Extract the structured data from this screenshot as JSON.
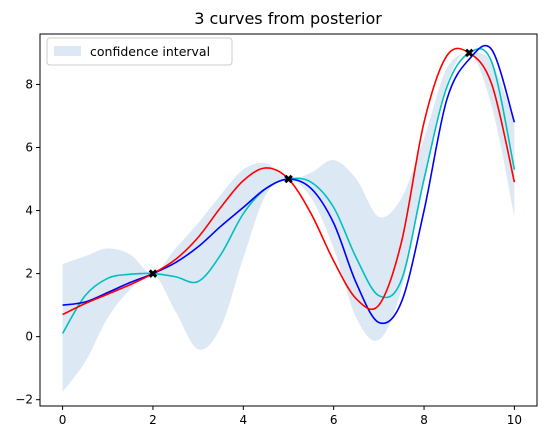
{
  "chart_data": {
    "type": "line",
    "title": "3 curves from posterior",
    "xlabel": "",
    "ylabel": "",
    "xlim": [
      -0.5,
      10.5
    ],
    "ylim": [
      -2.2,
      9.6
    ],
    "xticks": [
      0,
      2,
      4,
      6,
      8,
      10
    ],
    "yticks": [
      -2,
      0,
      2,
      4,
      6,
      8
    ],
    "grid": false,
    "legend": {
      "placement": "top-left",
      "entries": [
        "confidence interval"
      ]
    },
    "confidence_interval": {
      "name": "confidence interval",
      "color": "#dce8f4",
      "x": [
        0,
        0.5,
        1,
        1.5,
        2,
        2.5,
        3,
        3.5,
        4,
        4.5,
        5,
        5.5,
        6,
        6.5,
        7,
        7.5,
        8,
        8.5,
        9,
        9.5,
        10
      ],
      "upper": [
        2.3,
        2.55,
        2.8,
        2.6,
        2.0,
        2.8,
        3.6,
        4.5,
        5.3,
        5.5,
        5.0,
        5.2,
        5.6,
        5.0,
        3.8,
        4.4,
        6.3,
        8.5,
        9.0,
        8.7,
        6.8
      ],
      "lower": [
        -1.75,
        -0.8,
        0.6,
        1.5,
        2.0,
        0.8,
        -0.4,
        0.3,
        2.5,
        4.5,
        5.0,
        4.4,
        2.8,
        0.6,
        -0.1,
        1.5,
        5.0,
        8.0,
        9.0,
        7.3,
        3.8
      ]
    },
    "series": [
      {
        "color": "#00bfbf",
        "x": [
          0,
          0.5,
          1,
          1.5,
          2,
          2.5,
          3,
          3.5,
          4,
          4.5,
          5,
          5.5,
          6,
          6.5,
          7,
          7.5,
          8,
          8.5,
          9,
          9.5,
          10
        ],
        "y": [
          0.1,
          1.3,
          1.85,
          1.98,
          2.0,
          1.9,
          1.75,
          2.6,
          3.9,
          4.7,
          5.0,
          4.9,
          4.1,
          2.5,
          1.3,
          1.8,
          5.0,
          7.9,
          9.0,
          8.7,
          5.3
        ]
      },
      {
        "color": "#0000ff",
        "x": [
          0,
          0.5,
          1,
          1.5,
          2,
          2.5,
          3,
          3.5,
          4,
          4.5,
          5,
          5.5,
          6,
          6.5,
          7,
          7.5,
          8,
          8.5,
          9,
          9.5,
          10
        ],
        "y": [
          1.0,
          1.1,
          1.4,
          1.72,
          2.0,
          2.35,
          2.85,
          3.5,
          4.1,
          4.7,
          5.0,
          4.7,
          3.6,
          1.7,
          0.45,
          1.1,
          4.0,
          7.5,
          8.8,
          9.1,
          6.8
        ]
      },
      {
        "color": "#ff0000",
        "x": [
          0,
          0.5,
          1,
          1.5,
          2,
          2.5,
          3,
          3.5,
          4,
          4.5,
          5,
          5.5,
          6,
          6.5,
          7,
          7.5,
          8,
          8.5,
          9,
          9.5,
          10
        ],
        "y": [
          0.7,
          1.05,
          1.35,
          1.65,
          2.0,
          2.45,
          3.15,
          4.1,
          4.95,
          5.35,
          5.0,
          3.9,
          2.4,
          1.2,
          1.0,
          3.0,
          6.8,
          8.9,
          9.0,
          8.0,
          4.9
        ]
      }
    ],
    "observations": {
      "color": "#000000",
      "x": [
        2,
        5,
        9
      ],
      "y": [
        2.0,
        5.0,
        9.0
      ]
    }
  }
}
